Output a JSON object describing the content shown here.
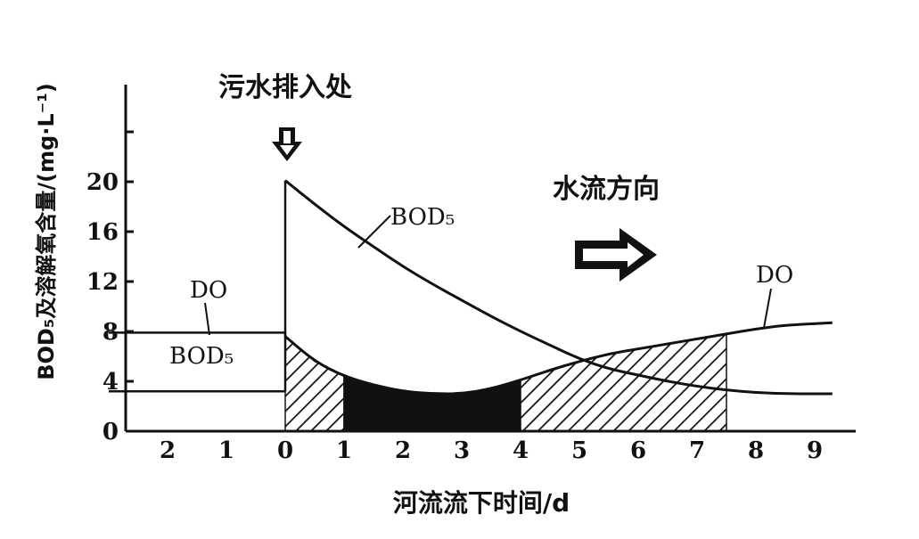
{
  "chart_data": {
    "type": "line",
    "title": "",
    "ylabel": "BOD₅及溶解氧含量/(mg·L⁻¹)",
    "xlabel": "河流流下时间/d",
    "ylim": [
      0,
      24
    ],
    "xlim": [
      -3,
      9.3
    ],
    "y_ticks": [
      "0",
      "4",
      "8",
      "12",
      "16",
      "20"
    ],
    "x_tick_labels": [
      {
        "x": -2,
        "label": "2"
      },
      {
        "x": -1,
        "label": "1"
      },
      {
        "x": 0,
        "label": "0"
      },
      {
        "x": 1,
        "label": "1"
      },
      {
        "x": 2,
        "label": "2"
      },
      {
        "x": 3,
        "label": "3"
      },
      {
        "x": 4,
        "label": "4"
      },
      {
        "x": 5,
        "label": "5"
      },
      {
        "x": 6,
        "label": "6"
      },
      {
        "x": 7,
        "label": "7"
      },
      {
        "x": 8,
        "label": "8"
      },
      {
        "x": 9,
        "label": "9"
      }
    ],
    "series": [
      {
        "name": "BOD₅",
        "upstream": [
          [
            -3,
            3.2
          ],
          [
            0,
            3.2
          ]
        ],
        "points": [
          [
            0,
            20.1
          ],
          [
            0.5,
            18.2
          ],
          [
            1,
            16.4
          ],
          [
            1.5,
            14.8
          ],
          [
            2,
            13.2
          ],
          [
            2.5,
            11.8
          ],
          [
            3,
            10.5
          ],
          [
            3.5,
            9.2
          ],
          [
            4,
            8.0
          ],
          [
            4.5,
            6.9
          ],
          [
            5,
            5.8
          ],
          [
            5.5,
            5.0
          ],
          [
            6,
            4.5
          ],
          [
            6.5,
            4.0
          ],
          [
            7,
            3.6
          ],
          [
            7.5,
            3.3
          ],
          [
            8,
            3.1
          ],
          [
            8.5,
            3.0
          ],
          [
            9.3,
            3.0
          ]
        ]
      },
      {
        "name": "DO",
        "upstream": [
          [
            -3,
            7.9
          ],
          [
            0,
            7.9
          ]
        ],
        "points": [
          [
            0,
            7.6
          ],
          [
            0.5,
            5.6
          ],
          [
            1,
            4.4
          ],
          [
            1.5,
            3.7
          ],
          [
            2,
            3.2
          ],
          [
            2.5,
            3.0
          ],
          [
            3,
            3.0
          ],
          [
            3.5,
            3.4
          ],
          [
            4,
            4.1
          ],
          [
            4.5,
            4.9
          ],
          [
            5,
            5.6
          ],
          [
            5.5,
            6.2
          ],
          [
            6,
            6.6
          ],
          [
            6.5,
            7.0
          ],
          [
            7,
            7.4
          ],
          [
            7.5,
            7.8
          ],
          [
            8,
            8.2
          ],
          [
            8.5,
            8.5
          ],
          [
            9.3,
            8.7
          ]
        ]
      }
    ],
    "labels": {
      "do_left": "DO",
      "bod_left": "BOD₅",
      "bod_curve": "BOD₅",
      "do_right": "DO"
    },
    "annotations": {
      "discharge": "污水排入处",
      "flow": "水流方向"
    },
    "shaded_regions": [
      {
        "from": 0,
        "to": 1,
        "pattern": "hatch"
      },
      {
        "from": 1,
        "to": 4,
        "pattern": "solid"
      },
      {
        "from": 4,
        "to": 7.5,
        "pattern": "hatch"
      }
    ],
    "grid": false
  }
}
